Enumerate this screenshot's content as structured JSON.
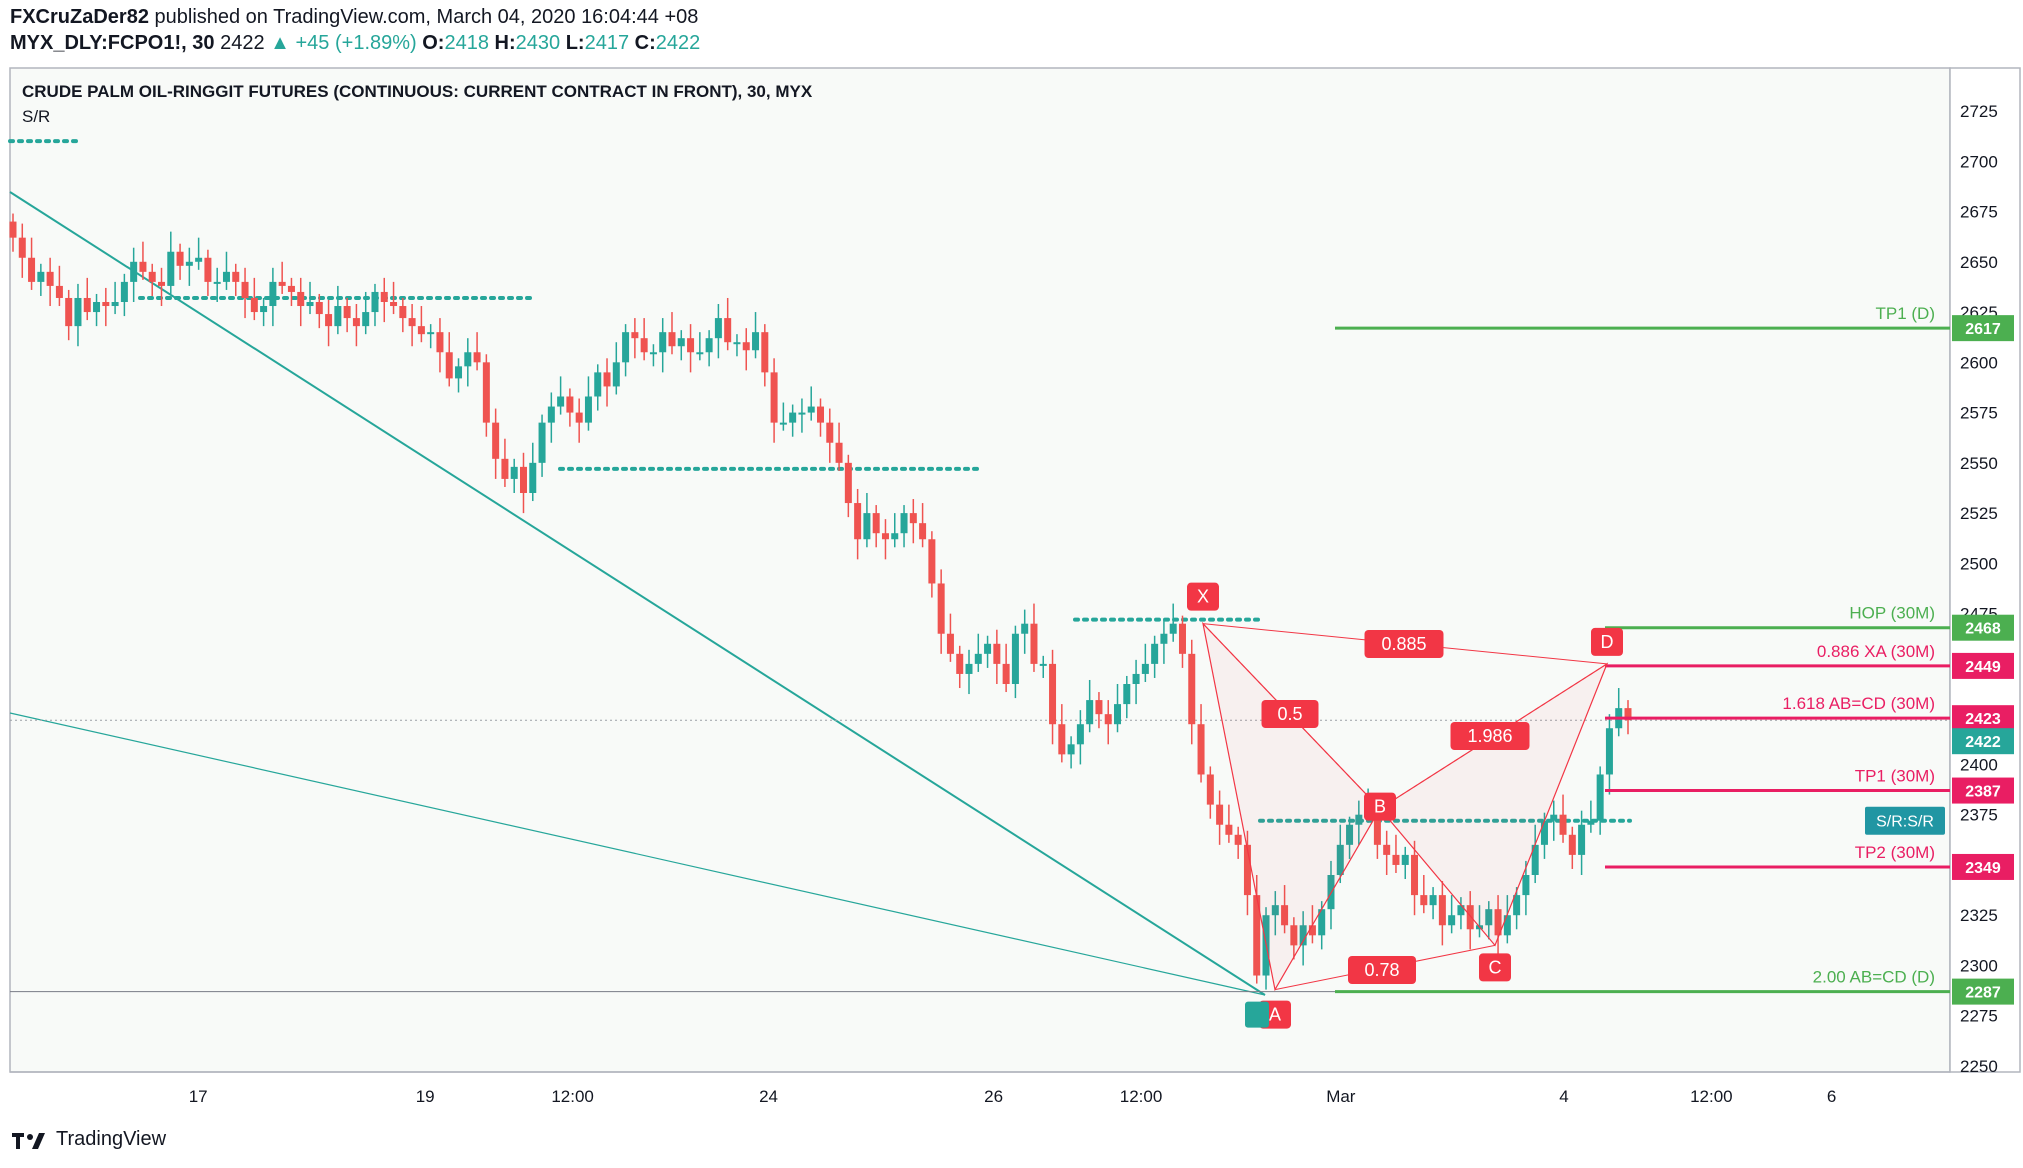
{
  "header": {
    "author": "FXCruZaDer82",
    "published": "published on TradingView.com, March 04, 2020 16:04:44 +08",
    "symbol": "MYX_DLY:FCPO1!, 30",
    "last": "2422",
    "change": "▲ +45 (+1.89%)",
    "o_label": "O:",
    "o": "2418",
    "h_label": "H:",
    "h": "2430",
    "l_label": "L:",
    "l": "2417",
    "c_label": "C:",
    "c": "2422"
  },
  "chart_title": "CRUDE PALM OIL-RINGGIT FUTURES (CONTINUOUS: CURRENT CONTRACT IN FRONT), 30, MYX",
  "indicator": "S/R",
  "footer": {
    "brand": "TradingView"
  },
  "colors": {
    "up": "#26a69a",
    "down": "#ef5350",
    "green_line": "#4caf50",
    "pink_line": "#e91e63",
    "sr_dots": "#26a69a",
    "pattern": "#f23645",
    "bg": "#f8faf8"
  },
  "chart_data": {
    "type": "candlestick",
    "title": "CRUDE PALM OIL-RINGGIT FUTURES (CONTINUOUS: CURRENT CONTRACT IN FRONT), 30, MYX",
    "ylim": [
      2250,
      2725
    ],
    "y_ticks": [
      2725,
      2700,
      2675,
      2650,
      2625,
      2600,
      2575,
      2550,
      2525,
      2500,
      2475,
      2450,
      2425,
      2400,
      2375,
      2350,
      2325,
      2300,
      2275,
      2250
    ],
    "x_ticks": [
      {
        "label": "17",
        "pos": 0.097
      },
      {
        "label": "19",
        "pos": 0.214
      },
      {
        "label": "12:00",
        "pos": 0.29
      },
      {
        "label": "24",
        "pos": 0.391
      },
      {
        "label": "26",
        "pos": 0.507
      },
      {
        "label": "12:00",
        "pos": 0.583
      },
      {
        "label": "Mar",
        "pos": 0.686
      },
      {
        "label": "4",
        "pos": 0.801
      },
      {
        "label": "12:00",
        "pos": 0.877
      },
      {
        "label": "6",
        "pos": 0.939
      }
    ],
    "closes": [
      2662,
      2652,
      2640,
      2645,
      2638,
      2632,
      2618,
      2632,
      2625,
      2630,
      2628,
      2630,
      2640,
      2650,
      2645,
      2640,
      2638,
      2655,
      2648,
      2650,
      2652,
      2640,
      2640,
      2645,
      2640,
      2632,
      2625,
      2628,
      2640,
      2638,
      2635,
      2628,
      2630,
      2624,
      2618,
      2628,
      2622,
      2618,
      2625,
      2635,
      2630,
      2628,
      2622,
      2618,
      2614,
      2615,
      2605,
      2592,
      2598,
      2605,
      2600,
      2570,
      2552,
      2542,
      2548,
      2535,
      2550,
      2570,
      2578,
      2583,
      2575,
      2570,
      2583,
      2595,
      2588,
      2600,
      2615,
      2612,
      2605,
      2605,
      2615,
      2608,
      2612,
      2605,
      2605,
      2612,
      2622,
      2610,
      2610,
      2606,
      2615,
      2595,
      2570,
      2570,
      2575,
      2575,
      2578,
      2570,
      2560,
      2550,
      2530,
      2512,
      2525,
      2515,
      2512,
      2515,
      2525,
      2520,
      2512,
      2490,
      2465,
      2455,
      2445,
      2450,
      2455,
      2460,
      2450,
      2440,
      2465,
      2470,
      2450,
      2450,
      2420,
      2405,
      2410,
      2420,
      2432,
      2425,
      2420,
      2430,
      2440,
      2445,
      2450,
      2460,
      2465,
      2470,
      2455,
      2420,
      2395,
      2380,
      2370,
      2365,
      2360,
      2335,
      2295,
      2325,
      2330,
      2320,
      2310,
      2320,
      2315,
      2328,
      2345,
      2360,
      2370,
      2375,
      2378,
      2360,
      2355,
      2350,
      2355,
      2335,
      2330,
      2335,
      2320,
      2325,
      2330,
      2318,
      2320,
      2328,
      2315,
      2325,
      2335,
      2345,
      2360,
      2372,
      2375,
      2365,
      2355,
      2370,
      2372,
      2395,
      2418,
      2428,
      2422
    ],
    "sr_levels": [
      {
        "value": 2710
      },
      {
        "value": 2632
      },
      {
        "value": 2547
      },
      {
        "value": 2472
      },
      {
        "value": 2372
      }
    ],
    "levels": [
      {
        "label": "TP1 (D)",
        "value": 2617,
        "tag": "2617",
        "color": "green"
      },
      {
        "label": "HOP (30M)",
        "value": 2468,
        "tag": "2468",
        "color": "green"
      },
      {
        "label": "0.886 XA (30M)",
        "value": 2449,
        "tag": "2449",
        "color": "pink"
      },
      {
        "label": "1.618 AB=CD (30M)",
        "value": 2423,
        "tag": "2423",
        "color": "pink"
      },
      {
        "label": "TP1 (30M)",
        "value": 2387,
        "tag": "2387",
        "color": "pink"
      },
      {
        "label": "TP2 (30M)",
        "value": 2349,
        "tag": "2349",
        "color": "pink"
      },
      {
        "label": "2.00 AB=CD (D)",
        "value": 2287,
        "tag": "2287",
        "color": "green"
      }
    ],
    "current_price": {
      "value": 2422,
      "tag": "2422"
    },
    "sr_tag": "S/R:S/R",
    "pattern_points": [
      {
        "label": "X",
        "value": 2470
      },
      {
        "label": "A",
        "value": 2288
      },
      {
        "label": "B",
        "value": 2378
      },
      {
        "label": "C",
        "value": 2310
      },
      {
        "label": "D",
        "value": 2450
      }
    ],
    "ratios": [
      "0.885",
      "0.5",
      "1.986",
      "0.78"
    ]
  }
}
